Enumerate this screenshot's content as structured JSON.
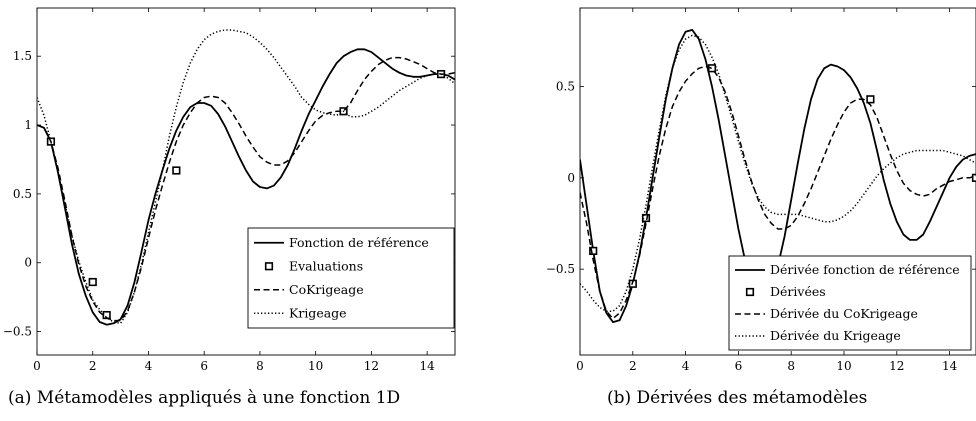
{
  "captions": {
    "a": "(a) Métamodèles appliqués à une fonction 1D",
    "b": "(b) Dérivées des métamodèles"
  },
  "chart_data": [
    {
      "type": "line",
      "title": "",
      "xlabel": "",
      "ylabel": "",
      "xlim": [
        0,
        15
      ],
      "ylim": [
        -0.67,
        1.85
      ],
      "xticks": [
        0,
        2,
        4,
        6,
        8,
        10,
        12,
        14
      ],
      "yticks": [
        -0.5,
        0,
        0.5,
        1,
        1.5
      ],
      "xtick_labels": [
        "0",
        "2",
        "4",
        "6",
        "8",
        "10",
        "12",
        "14"
      ],
      "ytick_labels": [
        "−0.5",
        "0",
        "0.5",
        "1",
        "1.5"
      ],
      "grid": false,
      "legend_position": "bottom-right",
      "series": [
        {
          "name": "Fonction de référence",
          "style": "solid",
          "x": [
            0,
            0.25,
            0.5,
            0.75,
            1,
            1.25,
            1.5,
            1.75,
            2,
            2.25,
            2.5,
            2.75,
            3,
            3.25,
            3.5,
            3.75,
            4,
            4.25,
            4.5,
            4.75,
            5,
            5.25,
            5.5,
            5.75,
            6,
            6.25,
            6.5,
            6.75,
            7,
            7.25,
            7.5,
            7.75,
            8,
            8.25,
            8.5,
            8.75,
            9,
            9.25,
            9.5,
            9.75,
            10,
            10.25,
            10.5,
            10.75,
            11,
            11.25,
            11.5,
            11.75,
            12,
            12.25,
            12.5,
            12.75,
            13,
            13.25,
            13.5,
            13.75,
            14,
            14.25,
            14.5,
            14.75,
            15
          ],
          "y": [
            1.0,
            0.98,
            0.88,
            0.66,
            0.4,
            0.14,
            -0.08,
            -0.24,
            -0.36,
            -0.43,
            -0.45,
            -0.44,
            -0.41,
            -0.31,
            -0.14,
            0.08,
            0.31,
            0.5,
            0.67,
            0.83,
            0.96,
            1.06,
            1.13,
            1.16,
            1.16,
            1.14,
            1.08,
            0.99,
            0.88,
            0.77,
            0.67,
            0.59,
            0.55,
            0.54,
            0.56,
            0.62,
            0.71,
            0.83,
            0.96,
            1.08,
            1.18,
            1.28,
            1.37,
            1.45,
            1.5,
            1.53,
            1.55,
            1.55,
            1.53,
            1.49,
            1.45,
            1.41,
            1.38,
            1.36,
            1.35,
            1.35,
            1.36,
            1.37,
            1.37,
            1.36,
            1.33
          ]
        },
        {
          "name": "Evaluations",
          "style": "markers",
          "x": [
            0.5,
            2,
            2.5,
            5,
            11,
            14.5
          ],
          "y": [
            0.88,
            -0.14,
            -0.38,
            0.67,
            1.1,
            1.37
          ]
        },
        {
          "name": "CoKrigeage",
          "style": "dashed",
          "x": [
            0,
            0.25,
            0.5,
            0.75,
            1,
            1.25,
            1.5,
            1.75,
            2,
            2.25,
            2.5,
            2.75,
            3,
            3.25,
            3.5,
            3.75,
            4,
            4.25,
            4.5,
            4.75,
            5,
            5.25,
            5.5,
            5.75,
            6,
            6.25,
            6.5,
            6.75,
            7,
            7.25,
            7.5,
            7.75,
            8,
            8.25,
            8.5,
            8.75,
            9,
            9.25,
            9.5,
            9.75,
            10,
            10.25,
            10.5,
            10.75,
            11,
            11.25,
            11.5,
            11.75,
            12,
            12.25,
            12.5,
            12.75,
            13,
            13.25,
            13.5,
            13.75,
            14,
            14.25,
            14.5,
            14.75,
            15
          ],
          "y": [
            1.0,
            0.98,
            0.88,
            0.69,
            0.45,
            0.2,
            -0.01,
            -0.17,
            -0.28,
            -0.36,
            -0.4,
            -0.42,
            -0.42,
            -0.35,
            -0.21,
            -0.03,
            0.18,
            0.38,
            0.56,
            0.73,
            0.88,
            1.0,
            1.09,
            1.16,
            1.2,
            1.21,
            1.2,
            1.16,
            1.09,
            1.01,
            0.92,
            0.84,
            0.77,
            0.73,
            0.71,
            0.71,
            0.74,
            0.8,
            0.88,
            0.96,
            1.03,
            1.07,
            1.09,
            1.1,
            1.1,
            1.16,
            1.25,
            1.33,
            1.39,
            1.44,
            1.47,
            1.49,
            1.49,
            1.48,
            1.46,
            1.44,
            1.41,
            1.38,
            1.37,
            1.37,
            1.38
          ]
        },
        {
          "name": "Krigeage",
          "style": "dotted",
          "x": [
            0,
            0.25,
            0.5,
            0.75,
            1,
            1.25,
            1.5,
            1.75,
            2,
            2.25,
            2.5,
            2.75,
            3,
            3.25,
            3.5,
            3.75,
            4,
            4.25,
            4.5,
            4.75,
            5,
            5.25,
            5.5,
            5.75,
            6,
            6.25,
            6.5,
            6.75,
            7,
            7.25,
            7.5,
            7.75,
            8,
            8.25,
            8.5,
            8.75,
            9,
            9.25,
            9.5,
            9.75,
            10,
            10.25,
            10.5,
            10.75,
            11,
            11.25,
            11.5,
            11.75,
            12,
            12.25,
            12.5,
            12.75,
            13,
            13.25,
            13.5,
            13.75,
            14,
            14.25,
            14.5,
            14.75,
            15
          ],
          "y": [
            1.2,
            1.07,
            0.88,
            0.66,
            0.43,
            0.2,
            0.01,
            -0.14,
            -0.27,
            -0.34,
            -0.4,
            -0.43,
            -0.44,
            -0.36,
            -0.21,
            -0.01,
            0.22,
            0.44,
            0.67,
            0.92,
            1.13,
            1.31,
            1.45,
            1.55,
            1.62,
            1.66,
            1.68,
            1.69,
            1.69,
            1.68,
            1.67,
            1.64,
            1.6,
            1.55,
            1.49,
            1.42,
            1.35,
            1.28,
            1.2,
            1.15,
            1.11,
            1.09,
            1.08,
            1.07,
            1.1,
            1.06,
            1.06,
            1.07,
            1.1,
            1.13,
            1.17,
            1.21,
            1.25,
            1.28,
            1.31,
            1.34,
            1.36,
            1.37,
            1.37,
            1.34,
            1.3
          ]
        }
      ]
    },
    {
      "type": "line",
      "title": "",
      "xlabel": "",
      "ylabel": "",
      "xlim": [
        0,
        15
      ],
      "ylim": [
        -0.97,
        0.93
      ],
      "xticks": [
        0,
        2,
        4,
        6,
        8,
        10,
        12,
        14
      ],
      "yticks": [
        -0.5,
        0,
        0.5
      ],
      "xtick_labels": [
        "0",
        "2",
        "4",
        "6",
        "8",
        "10",
        "12",
        "14"
      ],
      "ytick_labels": [
        "−0.5",
        "0",
        "0.5"
      ],
      "grid": false,
      "legend_position": "bottom-right",
      "series": [
        {
          "name": "Dérivée fonction de référence",
          "style": "solid",
          "x": [
            0,
            0.25,
            0.5,
            0.75,
            1,
            1.25,
            1.5,
            1.75,
            2,
            2.25,
            2.5,
            2.75,
            3,
            3.25,
            3.5,
            3.75,
            4,
            4.25,
            4.5,
            4.75,
            5,
            5.25,
            5.5,
            5.75,
            6,
            6.25,
            6.5,
            6.75,
            7,
            7.25,
            7.5,
            7.75,
            8,
            8.25,
            8.5,
            8.75,
            9,
            9.25,
            9.5,
            9.75,
            10,
            10.25,
            10.5,
            10.75,
            11,
            11.25,
            11.5,
            11.75,
            12,
            12.25,
            12.5,
            12.75,
            13,
            13.25,
            13.5,
            13.75,
            14,
            14.25,
            14.5,
            14.75,
            15
          ],
          "y": [
            0.1,
            -0.15,
            -0.4,
            -0.62,
            -0.74,
            -0.79,
            -0.78,
            -0.7,
            -0.58,
            -0.42,
            -0.22,
            0.0,
            0.22,
            0.43,
            0.6,
            0.73,
            0.8,
            0.81,
            0.76,
            0.65,
            0.5,
            0.32,
            0.12,
            -0.08,
            -0.28,
            -0.45,
            -0.58,
            -0.65,
            -0.66,
            -0.6,
            -0.48,
            -0.32,
            -0.12,
            0.08,
            0.27,
            0.43,
            0.54,
            0.6,
            0.62,
            0.61,
            0.59,
            0.55,
            0.49,
            0.41,
            0.3,
            0.15,
            -0.01,
            -0.14,
            -0.24,
            -0.31,
            -0.34,
            -0.34,
            -0.31,
            -0.24,
            -0.16,
            -0.08,
            0.0,
            0.06,
            0.1,
            0.12,
            0.13
          ]
        },
        {
          "name": "Dérivées",
          "style": "markers",
          "x": [
            0.5,
            2,
            2.5,
            5,
            11,
            15
          ],
          "y": [
            -0.4,
            -0.58,
            -0.22,
            0.6,
            0.43,
            0.0
          ]
        },
        {
          "name": "Dérivée du CoKrigeage",
          "style": "dashed",
          "x": [
            0,
            0.25,
            0.5,
            0.75,
            1,
            1.25,
            1.5,
            1.75,
            2,
            2.25,
            2.5,
            2.75,
            3,
            3.25,
            3.5,
            3.75,
            4,
            4.25,
            4.5,
            4.75,
            5,
            5.25,
            5.5,
            5.75,
            6,
            6.25,
            6.5,
            6.75,
            7,
            7.25,
            7.5,
            7.75,
            8,
            8.25,
            8.5,
            8.75,
            9,
            9.25,
            9.5,
            9.75,
            10,
            10.25,
            10.5,
            10.75,
            11,
            11.25,
            11.5,
            11.75,
            12,
            12.25,
            12.5,
            12.75,
            13,
            13.25,
            13.5,
            13.75,
            14,
            14.25,
            14.5,
            14.75,
            15
          ],
          "y": [
            -0.08,
            -0.25,
            -0.45,
            -0.62,
            -0.73,
            -0.77,
            -0.74,
            -0.67,
            -0.57,
            -0.43,
            -0.25,
            -0.06,
            0.12,
            0.27,
            0.39,
            0.47,
            0.53,
            0.57,
            0.6,
            0.61,
            0.6,
            0.55,
            0.47,
            0.36,
            0.23,
            0.1,
            -0.02,
            -0.12,
            -0.2,
            -0.25,
            -0.28,
            -0.28,
            -0.26,
            -0.21,
            -0.14,
            -0.06,
            0.03,
            0.12,
            0.21,
            0.29,
            0.36,
            0.41,
            0.43,
            0.43,
            0.4,
            0.33,
            0.23,
            0.13,
            0.04,
            -0.03,
            -0.07,
            -0.09,
            -0.1,
            -0.09,
            -0.06,
            -0.04,
            -0.02,
            -0.01,
            0.0,
            0.0,
            0.01
          ]
        },
        {
          "name": "Dérivée du Krigeage",
          "style": "dotted",
          "x": [
            0,
            0.25,
            0.5,
            0.75,
            1,
            1.25,
            1.5,
            1.75,
            2,
            2.25,
            2.5,
            2.75,
            3,
            3.25,
            3.5,
            3.75,
            4,
            4.25,
            4.5,
            4.75,
            5,
            5.25,
            5.5,
            5.75,
            6,
            6.25,
            6.5,
            6.75,
            7,
            7.25,
            7.5,
            7.75,
            8,
            8.25,
            8.5,
            8.75,
            9,
            9.25,
            9.5,
            9.75,
            10,
            10.25,
            10.5,
            10.75,
            11,
            11.25,
            11.5,
            11.75,
            12,
            12.25,
            12.5,
            12.75,
            13,
            13.25,
            13.5,
            13.75,
            14,
            14.25,
            14.5,
            14.75,
            15
          ],
          "y": [
            -0.58,
            -0.62,
            -0.67,
            -0.71,
            -0.73,
            -0.73,
            -0.7,
            -0.62,
            -0.5,
            -0.34,
            -0.15,
            0.06,
            0.26,
            0.45,
            0.6,
            0.7,
            0.76,
            0.78,
            0.77,
            0.73,
            0.66,
            0.57,
            0.45,
            0.33,
            0.2,
            0.08,
            -0.03,
            -0.11,
            -0.16,
            -0.19,
            -0.2,
            -0.2,
            -0.2,
            -0.2,
            -0.21,
            -0.22,
            -0.23,
            -0.24,
            -0.24,
            -0.23,
            -0.21,
            -0.18,
            -0.14,
            -0.09,
            -0.04,
            0.01,
            0.05,
            0.08,
            0.11,
            0.13,
            0.14,
            0.15,
            0.15,
            0.15,
            0.15,
            0.15,
            0.14,
            0.13,
            0.12,
            0.1,
            0.08
          ]
        }
      ]
    }
  ]
}
